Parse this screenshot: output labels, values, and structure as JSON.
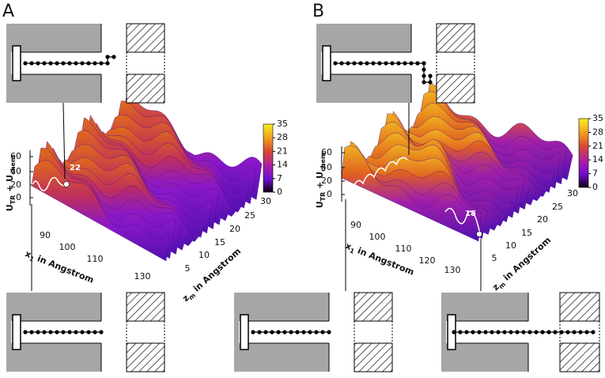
{
  "panels": [
    {
      "label": "A",
      "colorbar_ticks": [
        "35",
        "28",
        "21",
        "14",
        "7",
        "0"
      ],
      "z_ticks": [
        "60",
        "40",
        "20",
        "0"
      ],
      "x1_ticks": [
        "90",
        "100",
        "110",
        "130"
      ],
      "zm_ticks": [
        "5",
        "10",
        "15",
        "20",
        "25",
        "30"
      ],
      "z_title": [
        "U",
        "TR",
        " + U",
        "chem"
      ],
      "x1_title": [
        "x",
        "1",
        " in Angstrom"
      ],
      "zm_title": [
        "z",
        "m",
        " in Angstrom"
      ],
      "annotation": "22"
    },
    {
      "label": "B",
      "colorbar_ticks": [
        "35",
        "28",
        "21",
        "14",
        "7",
        "0"
      ],
      "z_ticks": [
        "60",
        "40",
        "20",
        "0"
      ],
      "x1_ticks": [
        "90",
        "100",
        "110",
        "120",
        "130"
      ],
      "zm_ticks": [
        "5",
        "10",
        "15",
        "20",
        "25",
        "30"
      ],
      "z_title": [
        "U",
        "TR",
        " + U",
        "chem"
      ],
      "x1_title": [
        "x",
        "1",
        " in Angstrom"
      ],
      "zm_title": [
        "z",
        "m",
        " in Angstrom"
      ],
      "annotation": "18"
    }
  ]
}
